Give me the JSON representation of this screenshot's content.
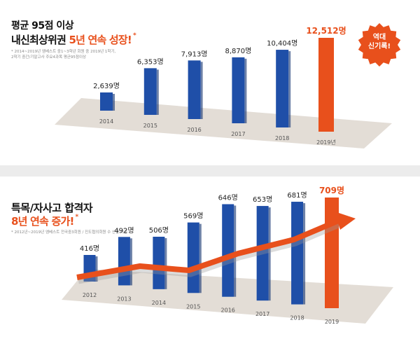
{
  "top_panel": {
    "title_line1": "평균 95점 이상",
    "title_line2_plain": "내신최상위권 ",
    "title_line2_accent": "5년 연속 성장!",
    "asterisk": "*",
    "footnote_line1": "* 2014~2019년 엠베스트 중1~3학년 회원 중 2019년 1학기,",
    "footnote_line2": "2학기 중간/기말고사 주요4과목 평균95점이상",
    "badge_line1": "역대",
    "badge_line2": "신기록!",
    "colors": {
      "bar": "#1f4fa8",
      "highlight": "#e8501c",
      "floor": "#e3ddd6"
    }
  },
  "bottom_panel": {
    "title_line1": "특목/자사고 합격자",
    "title_line2_accent": "8년 연속 증가!",
    "asterisk": "*",
    "footnote": "* 2012년~2019년 엠베스트 전국중3회원 / 진도협의회원 수 산정 기준",
    "colors": {
      "bar": "#1f4fa8",
      "highlight": "#e8501c",
      "floor": "#e3ddd6",
      "arrow": "#e8501c"
    }
  },
  "chart_data": [
    {
      "type": "bar",
      "title": "평균 95점 이상 내신최상위권 5년 연속 성장!",
      "categories": [
        "2014",
        "2015",
        "2016",
        "2017",
        "2018",
        "2019년"
      ],
      "values": [
        2639,
        6353,
        7913,
        8870,
        10404,
        12512
      ],
      "value_labels": [
        "2,639명",
        "6,353명",
        "7,913명",
        "8,870명",
        "10,404명",
        "12,512명"
      ],
      "highlight_index": 5
    },
    {
      "type": "bar",
      "title": "특목/자사고 합격자 8년 연속 증가!",
      "categories": [
        "2012",
        "2013",
        "2014",
        "2015",
        "2016",
        "2017",
        "2018",
        "2019"
      ],
      "values": [
        416,
        492,
        506,
        569,
        646,
        653,
        681,
        709
      ],
      "value_labels": [
        "416명",
        "492명",
        "506명",
        "569명",
        "646명",
        "653명",
        "681명",
        "709명"
      ],
      "highlight_index": 7
    }
  ]
}
